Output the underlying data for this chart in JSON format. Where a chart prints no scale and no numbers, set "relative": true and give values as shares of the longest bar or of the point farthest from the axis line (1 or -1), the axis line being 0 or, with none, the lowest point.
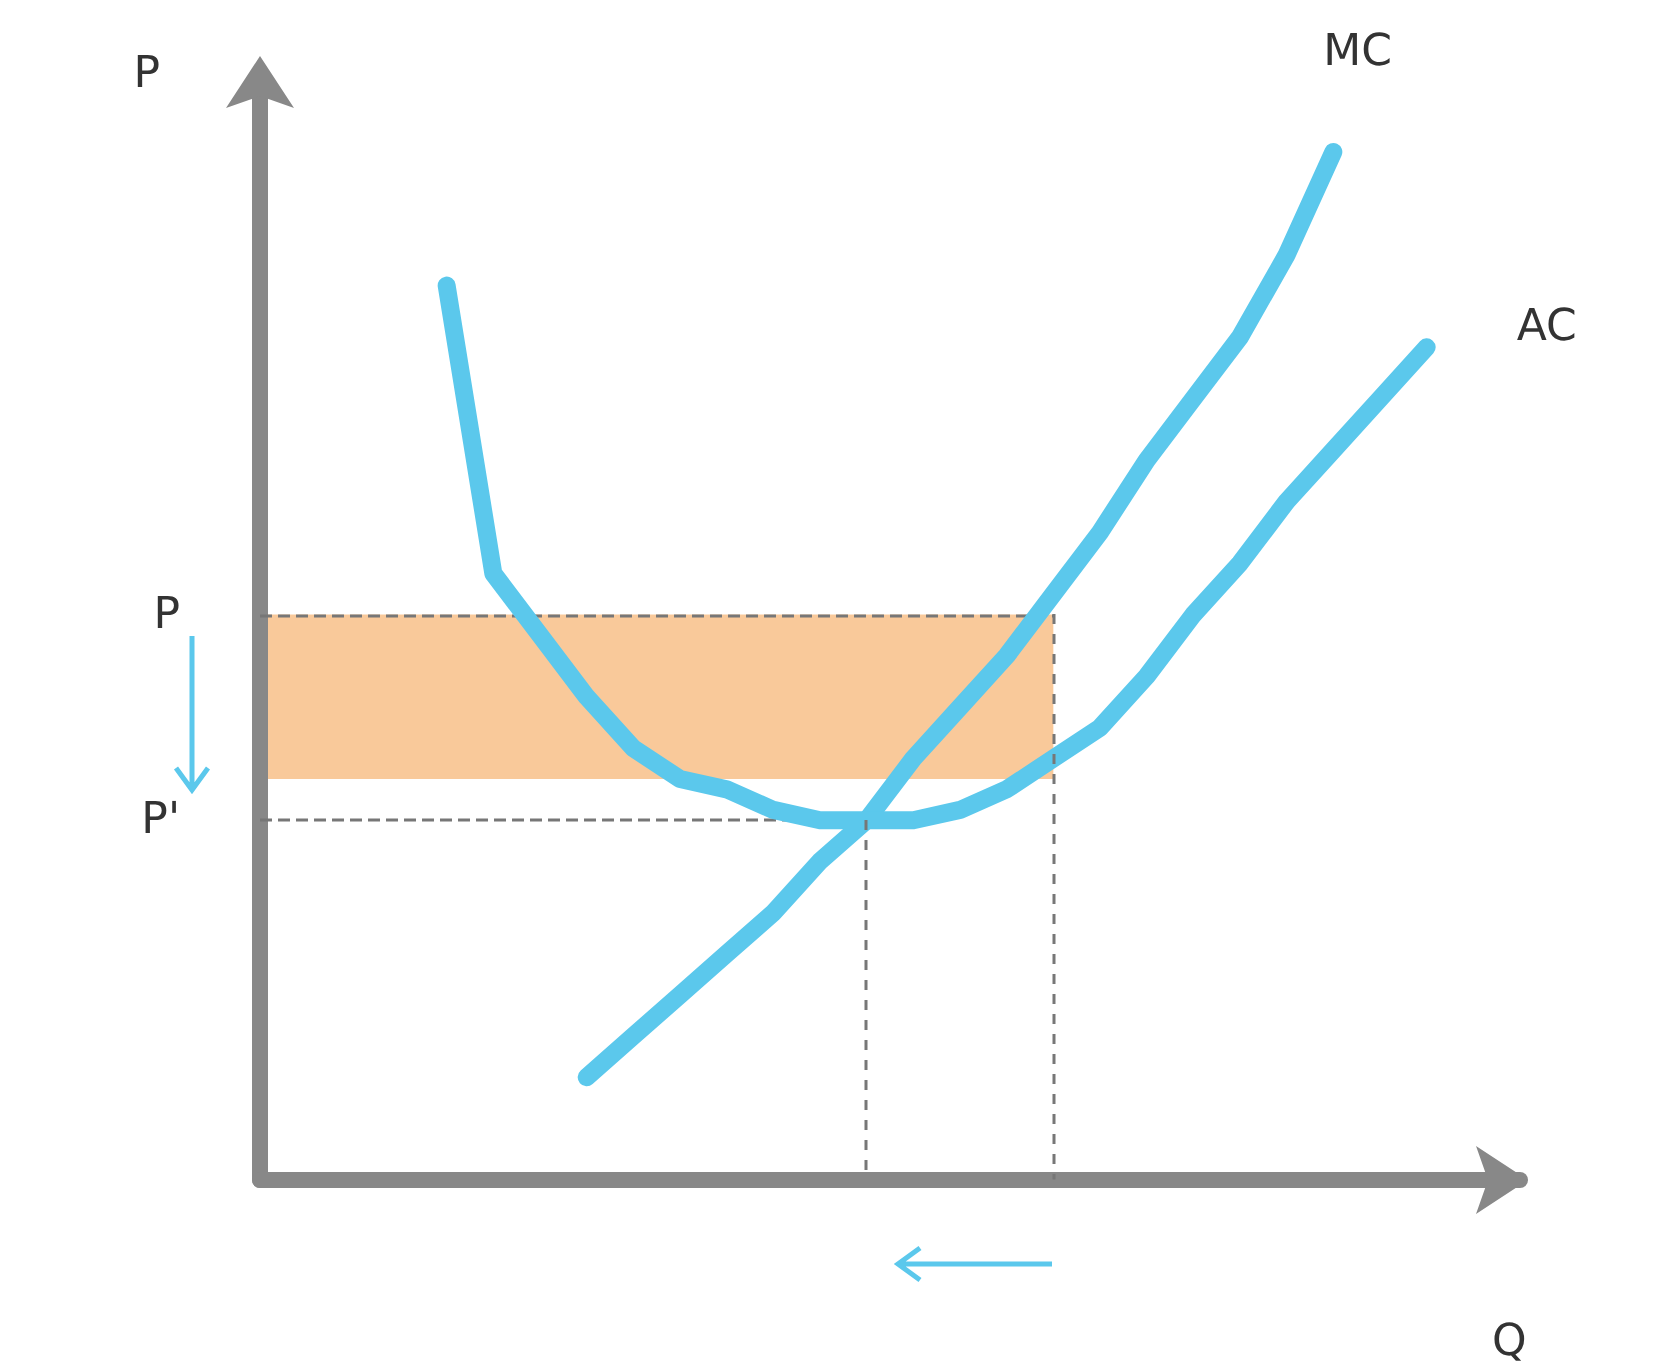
{
  "chart_data": {
    "type": "line",
    "relative": true,
    "xlabel": "Q",
    "ylabel": "P",
    "legend": false,
    "grid": false,
    "marker": "none",
    "line_style": "solid",
    "categories": [
      null,
      null,
      null,
      null,
      null,
      null,
      null,
      null,
      null,
      null,
      null,
      null,
      null,
      null,
      null,
      null,
      null,
      null,
      null,
      null,
      null,
      null,
      null,
      null,
      null,
      null,
      null,
      null
    ],
    "series": [
      {
        "name": "MC",
        "color": "#5bc8ec",
        "values": [
          null,
          null,
          null,
          null,
          null,
          null,
          null,
          0.1,
          0.14,
          0.18,
          0.22,
          0.26,
          0.31,
          0.35,
          0.41,
          0.46,
          0.51,
          0.57,
          0.63,
          0.7,
          0.76,
          0.82,
          0.9,
          1.0,
          null,
          null,
          null,
          null
        ]
      },
      {
        "name": "AC",
        "color": "#5bc8ec",
        "values": [
          null,
          null,
          null,
          null,
          0.87,
          0.59,
          0.53,
          0.47,
          0.42,
          0.39,
          0.38,
          0.36,
          0.35,
          0.35,
          0.35,
          0.36,
          0.38,
          0.41,
          0.44,
          0.49,
          0.55,
          0.6,
          0.66,
          0.71,
          0.76,
          0.81,
          null,
          null
        ]
      }
    ],
    "ref_lines": [
      {
        "axis": "y",
        "value": 0.55,
        "label": "P",
        "color": "#777777",
        "line_style": "dashed"
      },
      {
        "axis": "y",
        "value": 0.35,
        "label": "P'",
        "color": "#777777",
        "line_style": "dashed"
      }
    ],
    "bands": [
      {
        "axis": "y",
        "from": 0.39,
        "to": 0.55,
        "color": "#f9c99a"
      }
    ]
  }
}
